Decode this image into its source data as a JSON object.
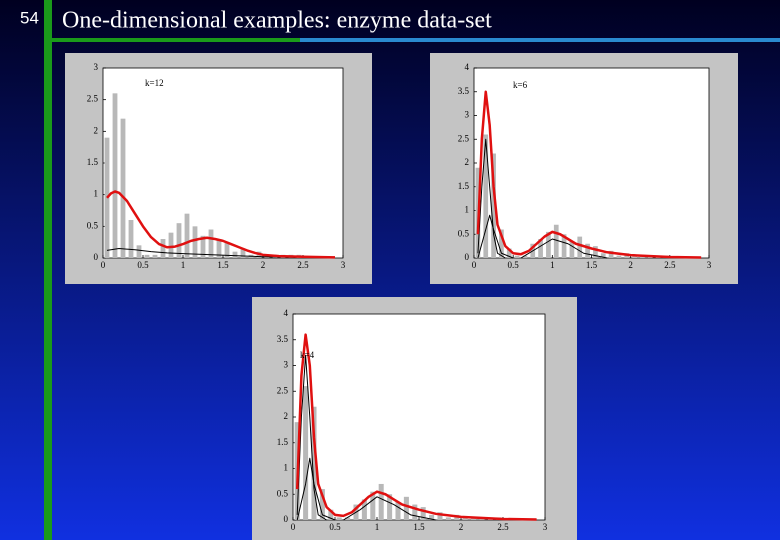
{
  "slide": {
    "number": "54",
    "title": "One-dimensional examples: enzyme data-set"
  },
  "chart_data": [
    {
      "type": "histogram",
      "label": "k=12",
      "bar_color": "#b8b8b8",
      "xlim": [
        0,
        3
      ],
      "xticks": [
        0,
        0.5,
        1,
        1.5,
        2,
        2.5,
        3
      ],
      "ylim": [
        0,
        3
      ],
      "yticks": [
        0,
        0.5,
        1,
        1.5,
        2,
        2.5,
        3
      ],
      "bins": [
        0,
        0.1,
        0.2,
        0.3,
        0.4,
        0.5,
        0.6,
        0.7,
        0.8,
        0.9,
        1,
        1.1,
        1.2,
        1.3,
        1.4,
        1.5,
        1.6,
        1.7,
        1.8,
        1.9,
        2,
        2.1,
        2.2,
        2.3,
        2.4,
        2.5,
        2.6,
        2.7,
        2.8,
        2.9,
        3
      ],
      "values": [
        1.9,
        2.6,
        2.2,
        0.6,
        0.2,
        0.05,
        0.05,
        0.3,
        0.4,
        0.55,
        0.7,
        0.5,
        0.35,
        0.45,
        0.3,
        0.25,
        0.1,
        0.15,
        0.05,
        0.1,
        0.05,
        0.05,
        0.05,
        0.05,
        0.05,
        0,
        0,
        0,
        0,
        0
      ],
      "series": [
        {
          "color": "#e01010",
          "x": [
            0.05,
            0.1,
            0.15,
            0.2,
            0.3,
            0.4,
            0.5,
            0.6,
            0.7,
            0.8,
            0.9,
            1,
            1.1,
            1.2,
            1.3,
            1.4,
            1.5,
            1.6,
            1.7,
            1.8,
            1.9,
            2,
            2.2,
            2.5,
            2.9
          ],
          "values": [
            0.95,
            1.02,
            1.05,
            1.03,
            0.9,
            0.7,
            0.5,
            0.33,
            0.22,
            0.17,
            0.18,
            0.22,
            0.27,
            0.3,
            0.32,
            0.3,
            0.27,
            0.22,
            0.17,
            0.12,
            0.08,
            0.05,
            0.03,
            0.02,
            0.01
          ]
        },
        {
          "color": "#000000",
          "x": [
            0.05,
            0.2,
            0.4,
            0.6,
            0.8,
            1,
            1.2,
            1.4,
            1.6,
            1.8,
            2,
            2.4
          ],
          "values": [
            0.12,
            0.15,
            0.13,
            0.1,
            0.08,
            0.07,
            0.06,
            0.05,
            0.04,
            0.03,
            0.02,
            0.01
          ]
        }
      ]
    },
    {
      "type": "histogram",
      "label": "k=6",
      "bar_color": "#b8b8b8",
      "xlim": [
        0,
        3
      ],
      "xticks": [
        0,
        0.5,
        1,
        1.5,
        2,
        2.5,
        3
      ],
      "ylim": [
        0,
        4
      ],
      "yticks": [
        0,
        0.5,
        1,
        1.5,
        2,
        2.5,
        3,
        3.5,
        4
      ],
      "bins": [
        0,
        0.1,
        0.2,
        0.3,
        0.4,
        0.5,
        0.6,
        0.7,
        0.8,
        0.9,
        1,
        1.1,
        1.2,
        1.3,
        1.4,
        1.5,
        1.6,
        1.7,
        1.8,
        1.9,
        2,
        2.1,
        2.2,
        2.3,
        2.4,
        2.5,
        2.6,
        2.7,
        2.8,
        2.9,
        3
      ],
      "values": [
        1.9,
        2.6,
        2.2,
        0.6,
        0.2,
        0.05,
        0.05,
        0.3,
        0.4,
        0.55,
        0.7,
        0.5,
        0.35,
        0.45,
        0.3,
        0.25,
        0.1,
        0.15,
        0.05,
        0.1,
        0.05,
        0.05,
        0.05,
        0.05,
        0.05,
        0,
        0,
        0,
        0,
        0
      ],
      "series": [
        {
          "color": "#e01010",
          "x": [
            0.05,
            0.1,
            0.15,
            0.2,
            0.25,
            0.3,
            0.4,
            0.5,
            0.6,
            0.7,
            0.8,
            0.9,
            1,
            1.1,
            1.2,
            1.3,
            1.5,
            1.7,
            2,
            2.5,
            2.9
          ],
          "values": [
            0.5,
            2.5,
            3.5,
            2.8,
            1.5,
            0.7,
            0.25,
            0.1,
            0.08,
            0.15,
            0.3,
            0.45,
            0.55,
            0.5,
            0.4,
            0.3,
            0.2,
            0.12,
            0.06,
            0.02,
            0.01
          ]
        },
        {
          "color": "#000000",
          "x": [
            0.05,
            0.1,
            0.15,
            0.2,
            0.25,
            0.3,
            0.4
          ],
          "values": [
            0.1,
            1.5,
            2.5,
            1.5,
            0.5,
            0.1,
            0
          ]
        },
        {
          "color": "#000000",
          "x": [
            0.05,
            0.15,
            0.2,
            0.25,
            0.35,
            0.5
          ],
          "values": [
            0,
            0.6,
            0.9,
            0.6,
            0.1,
            0
          ]
        },
        {
          "color": "#000000",
          "x": [
            0.6,
            0.8,
            1,
            1.2,
            1.4,
            1.7
          ],
          "values": [
            0,
            0.2,
            0.4,
            0.3,
            0.1,
            0
          ]
        }
      ]
    },
    {
      "type": "histogram",
      "label": "k=4",
      "bar_color": "#b8b8b8",
      "xlim": [
        0,
        3
      ],
      "xticks": [
        0,
        0.5,
        1,
        1.5,
        2,
        2.5,
        3
      ],
      "ylim": [
        0,
        4
      ],
      "yticks": [
        0,
        0.5,
        1,
        1.5,
        2,
        2.5,
        3,
        3.5,
        4
      ],
      "bins": [
        0,
        0.1,
        0.2,
        0.3,
        0.4,
        0.5,
        0.6,
        0.7,
        0.8,
        0.9,
        1,
        1.1,
        1.2,
        1.3,
        1.4,
        1.5,
        1.6,
        1.7,
        1.8,
        1.9,
        2,
        2.1,
        2.2,
        2.3,
        2.4,
        2.5,
        2.6,
        2.7,
        2.8,
        2.9,
        3
      ],
      "values": [
        1.9,
        2.6,
        2.2,
        0.6,
        0.2,
        0.05,
        0.05,
        0.3,
        0.4,
        0.55,
        0.7,
        0.5,
        0.35,
        0.45,
        0.3,
        0.25,
        0.1,
        0.15,
        0.05,
        0.1,
        0.05,
        0.05,
        0.05,
        0.05,
        0.05,
        0,
        0,
        0,
        0,
        0
      ],
      "series": [
        {
          "color": "#e01010",
          "x": [
            0.05,
            0.1,
            0.15,
            0.2,
            0.25,
            0.3,
            0.4,
            0.5,
            0.6,
            0.7,
            0.8,
            0.9,
            1,
            1.1,
            1.2,
            1.3,
            1.5,
            1.7,
            2,
            2.5,
            2.9
          ],
          "values": [
            0.6,
            2.8,
            3.6,
            3,
            1.6,
            0.7,
            0.25,
            0.1,
            0.08,
            0.15,
            0.3,
            0.45,
            0.55,
            0.5,
            0.4,
            0.3,
            0.2,
            0.12,
            0.06,
            0.02,
            0.01
          ]
        },
        {
          "color": "#000000",
          "x": [
            0.05,
            0.1,
            0.15,
            0.2,
            0.25,
            0.3,
            0.4
          ],
          "values": [
            0.1,
            2,
            3.2,
            2,
            0.6,
            0.1,
            0
          ]
        },
        {
          "color": "#000000",
          "x": [
            0.05,
            0.15,
            0.2,
            0.25,
            0.35,
            0.5
          ],
          "values": [
            0,
            0.7,
            1.2,
            0.7,
            0.1,
            0
          ]
        },
        {
          "color": "#000000",
          "x": [
            0.6,
            0.8,
            1,
            1.2,
            1.4,
            1.7
          ],
          "values": [
            0,
            0.2,
            0.45,
            0.3,
            0.1,
            0
          ]
        }
      ]
    }
  ]
}
